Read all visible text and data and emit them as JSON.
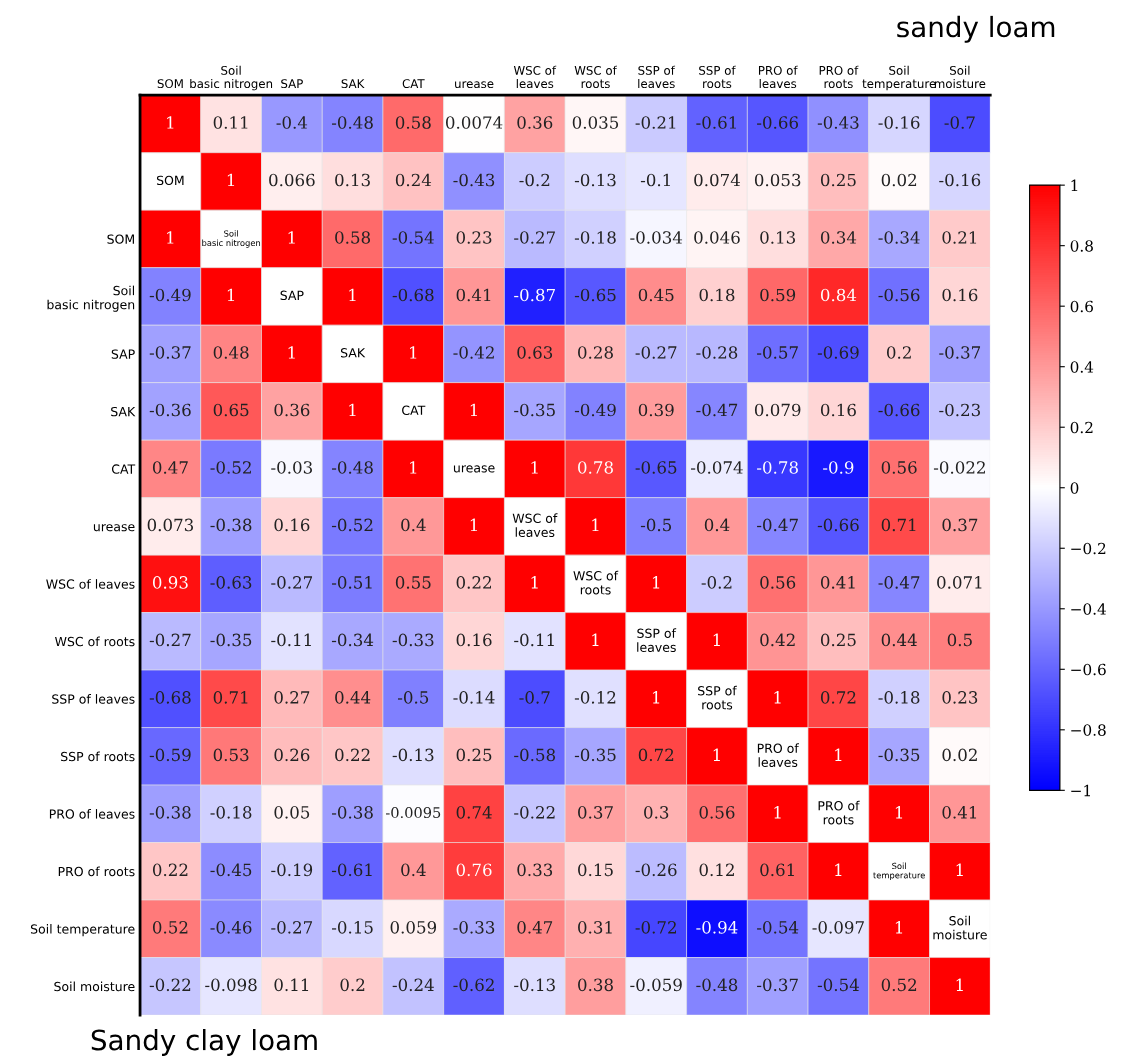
{
  "chart_data": {
    "type": "heatmap",
    "categories": [
      "SOM",
      "Soil\nbasic nitrogen",
      "SAP",
      "SAK",
      "CAT",
      "urease",
      "WSC of\nleaves",
      "WSC of\nroots",
      "SSP of\nleaves",
      "SSP of\nroots",
      "PRO of\nleaves",
      "PRO of\nroots",
      "Soil\ntemperature",
      "Soil\nmoisture"
    ],
    "y_categories": [
      null,
      null,
      "SOM",
      "Soil\nbasic nitrogen",
      "SAP",
      "SAK",
      "CAT",
      "urease",
      "WSC of leaves",
      "WSC of roots",
      "SSP of leaves",
      "SSP of roots",
      "PRO of leaves",
      "PRO of roots",
      "Soil temperature",
      "Soil moisture"
    ],
    "cells": [
      [
        1,
        0.11,
        -0.4,
        -0.48,
        0.58,
        0.0074,
        0.36,
        0.035,
        -0.21,
        -0.61,
        -0.66,
        -0.43,
        -0.16,
        -0.7
      ],
      [
        null,
        1,
        0.066,
        0.13,
        0.24,
        -0.43,
        -0.2,
        -0.13,
        -0.1,
        0.074,
        0.053,
        0.25,
        0.02,
        -0.16
      ],
      [
        1,
        null,
        1,
        0.58,
        -0.54,
        0.23,
        -0.27,
        -0.18,
        -0.034,
        0.046,
        0.13,
        0.34,
        -0.34,
        0.21
      ],
      [
        -0.49,
        1,
        null,
        1,
        -0.68,
        0.41,
        -0.87,
        -0.65,
        0.45,
        0.18,
        0.59,
        0.84,
        -0.56,
        0.16
      ],
      [
        -0.37,
        0.48,
        1,
        null,
        1,
        -0.42,
        0.63,
        0.28,
        -0.27,
        -0.28,
        -0.57,
        -0.69,
        0.2,
        -0.37
      ],
      [
        -0.36,
        0.65,
        0.36,
        1,
        null,
        1,
        -0.35,
        -0.49,
        0.39,
        -0.47,
        0.079,
        0.16,
        -0.66,
        -0.23
      ],
      [
        0.47,
        -0.52,
        -0.03,
        -0.48,
        1,
        null,
        1,
        0.78,
        -0.65,
        -0.074,
        -0.78,
        -0.9,
        0.56,
        -0.022
      ],
      [
        0.073,
        -0.38,
        0.16,
        -0.52,
        0.4,
        1,
        null,
        1,
        -0.5,
        0.4,
        -0.47,
        -0.66,
        0.71,
        0.37
      ],
      [
        0.93,
        -0.63,
        -0.27,
        -0.51,
        0.55,
        0.22,
        1,
        null,
        1,
        -0.2,
        0.56,
        0.41,
        -0.47,
        0.071
      ],
      [
        -0.27,
        -0.35,
        -0.11,
        -0.34,
        -0.33,
        0.16,
        -0.11,
        1,
        null,
        1,
        0.42,
        0.25,
        0.44,
        0.5
      ],
      [
        -0.68,
        0.71,
        0.27,
        0.44,
        -0.5,
        -0.14,
        -0.7,
        -0.12,
        1,
        null,
        1,
        0.72,
        -0.18,
        0.23
      ],
      [
        -0.59,
        0.53,
        0.26,
        0.22,
        -0.13,
        0.25,
        -0.58,
        -0.35,
        0.72,
        1,
        null,
        1,
        -0.35,
        0.02
      ],
      [
        -0.38,
        -0.18,
        0.05,
        -0.38,
        -0.0095,
        0.74,
        -0.22,
        0.37,
        0.3,
        0.56,
        1,
        null,
        1,
        0.41
      ],
      [
        0.22,
        -0.45,
        -0.19,
        -0.61,
        0.4,
        0.76,
        0.33,
        0.15,
        -0.26,
        0.12,
        0.61,
        1,
        null,
        1
      ],
      [
        0.52,
        -0.46,
        -0.27,
        -0.15,
        0.059,
        -0.33,
        0.47,
        0.31,
        -0.72,
        -0.94,
        -0.54,
        -0.097,
        1,
        null
      ],
      [
        -0.22,
        -0.098,
        0.11,
        0.2,
        -0.24,
        -0.62,
        -0.13,
        0.38,
        -0.059,
        -0.48,
        -0.37,
        -0.54,
        0.52,
        1
      ]
    ],
    "cell_labels": [
      [
        "1",
        "0.11",
        "-0.4",
        "-0.48",
        "0.58",
        "0.0074",
        "0.36",
        "0.035",
        "-0.21",
        "-0.61",
        "-0.66",
        "-0.43",
        "-0.16",
        "-0.7"
      ],
      [
        "SOM",
        "1",
        "0.066",
        "0.13",
        "0.24",
        "-0.43",
        "-0.2",
        "-0.13",
        "-0.1",
        "0.074",
        "0.053",
        "0.25",
        "0.02",
        "-0.16"
      ],
      [
        "1",
        "Soil\nbasic nitrogen",
        "1",
        "0.58",
        "-0.54",
        "0.23",
        "-0.27",
        "-0.18",
        "-0.034",
        "0.046",
        "0.13",
        "0.34",
        "-0.34",
        "0.21"
      ],
      [
        "-0.49",
        "1",
        "SAP",
        "1",
        "-0.68",
        "0.41",
        "-0.87",
        "-0.65",
        "0.45",
        "0.18",
        "0.59",
        "0.84",
        "-0.56",
        "0.16"
      ],
      [
        "-0.37",
        "0.48",
        "1",
        "SAK",
        "1",
        "-0.42",
        "0.63",
        "0.28",
        "-0.27",
        "-0.28",
        "-0.57",
        "-0.69",
        "0.2",
        "-0.37"
      ],
      [
        "-0.36",
        "0.65",
        "0.36",
        "1",
        "CAT",
        "1",
        "-0.35",
        "-0.49",
        "0.39",
        "-0.47",
        "0.079",
        "0.16",
        "-0.66",
        "-0.23"
      ],
      [
        "0.47",
        "-0.52",
        "-0.03",
        "-0.48",
        "1",
        "urease",
        "1",
        "0.78",
        "-0.65",
        "-0.074",
        "-0.78",
        "-0.9",
        "0.56",
        "-0.022"
      ],
      [
        "0.073",
        "-0.38",
        "0.16",
        "-0.52",
        "0.4",
        "1",
        "WSC of\nleaves",
        "1",
        "-0.5",
        "0.4",
        "-0.47",
        "-0.66",
        "0.71",
        "0.37"
      ],
      [
        "0.93",
        "-0.63",
        "-0.27",
        "-0.51",
        "0.55",
        "0.22",
        "1",
        "WSC of\nroots",
        "1",
        "-0.2",
        "0.56",
        "0.41",
        "-0.47",
        "0.071"
      ],
      [
        "-0.27",
        "-0.35",
        "-0.11",
        "-0.34",
        "-0.33",
        "0.16",
        "-0.11",
        "1",
        "SSP of\nleaves",
        "1",
        "0.42",
        "0.25",
        "0.44",
        "0.5"
      ],
      [
        "-0.68",
        "0.71",
        "0.27",
        "0.44",
        "-0.5",
        "-0.14",
        "-0.7",
        "-0.12",
        "1",
        "SSP of\nroots",
        "1",
        "0.72",
        "-0.18",
        "0.23"
      ],
      [
        "-0.59",
        "0.53",
        "0.26",
        "0.22",
        "-0.13",
        "0.25",
        "-0.58",
        "-0.35",
        "0.72",
        "1",
        "PRO of\nleaves",
        "1",
        "-0.35",
        "0.02"
      ],
      [
        "-0.38",
        "-0.18",
        "0.05",
        "-0.38",
        "-0.0095",
        "0.74",
        "-0.22",
        "0.37",
        "0.3",
        "0.56",
        "1",
        "PRO of\nroots",
        "1",
        "0.41"
      ],
      [
        "0.22",
        "-0.45",
        "-0.19",
        "-0.61",
        "0.4",
        "0.76",
        "0.33",
        "0.15",
        "-0.26",
        "0.12",
        "0.61",
        "1",
        "Soil\ntemperature",
        "1"
      ],
      [
        "0.52",
        "-0.46",
        "-0.27",
        "-0.15",
        "0.059",
        "-0.33",
        "0.47",
        "0.31",
        "-0.72",
        "-0.94",
        "-0.54",
        "-0.097",
        "1",
        "Soil\nmoisture"
      ],
      [
        "-0.22",
        "-0.098",
        "0.11",
        "0.2",
        "-0.24",
        "-0.62",
        "-0.13",
        "0.38",
        "-0.059",
        "-0.48",
        "-0.37",
        "-0.54",
        "0.52",
        "1"
      ]
    ],
    "clim": [
      -1,
      1
    ],
    "cticks": [
      {
        "value": -1,
        "label": "−1"
      },
      {
        "value": -0.8,
        "label": "−0.8"
      },
      {
        "value": -0.6,
        "label": "−0.6"
      },
      {
        "value": -0.4,
        "label": "−0.4"
      },
      {
        "value": -0.2,
        "label": "−0.2"
      },
      0,
      0.2,
      0.4,
      0.6,
      0.8,
      1
    ],
    "annotations": [
      "sandy loam",
      "Sandy clay loam"
    ]
  }
}
